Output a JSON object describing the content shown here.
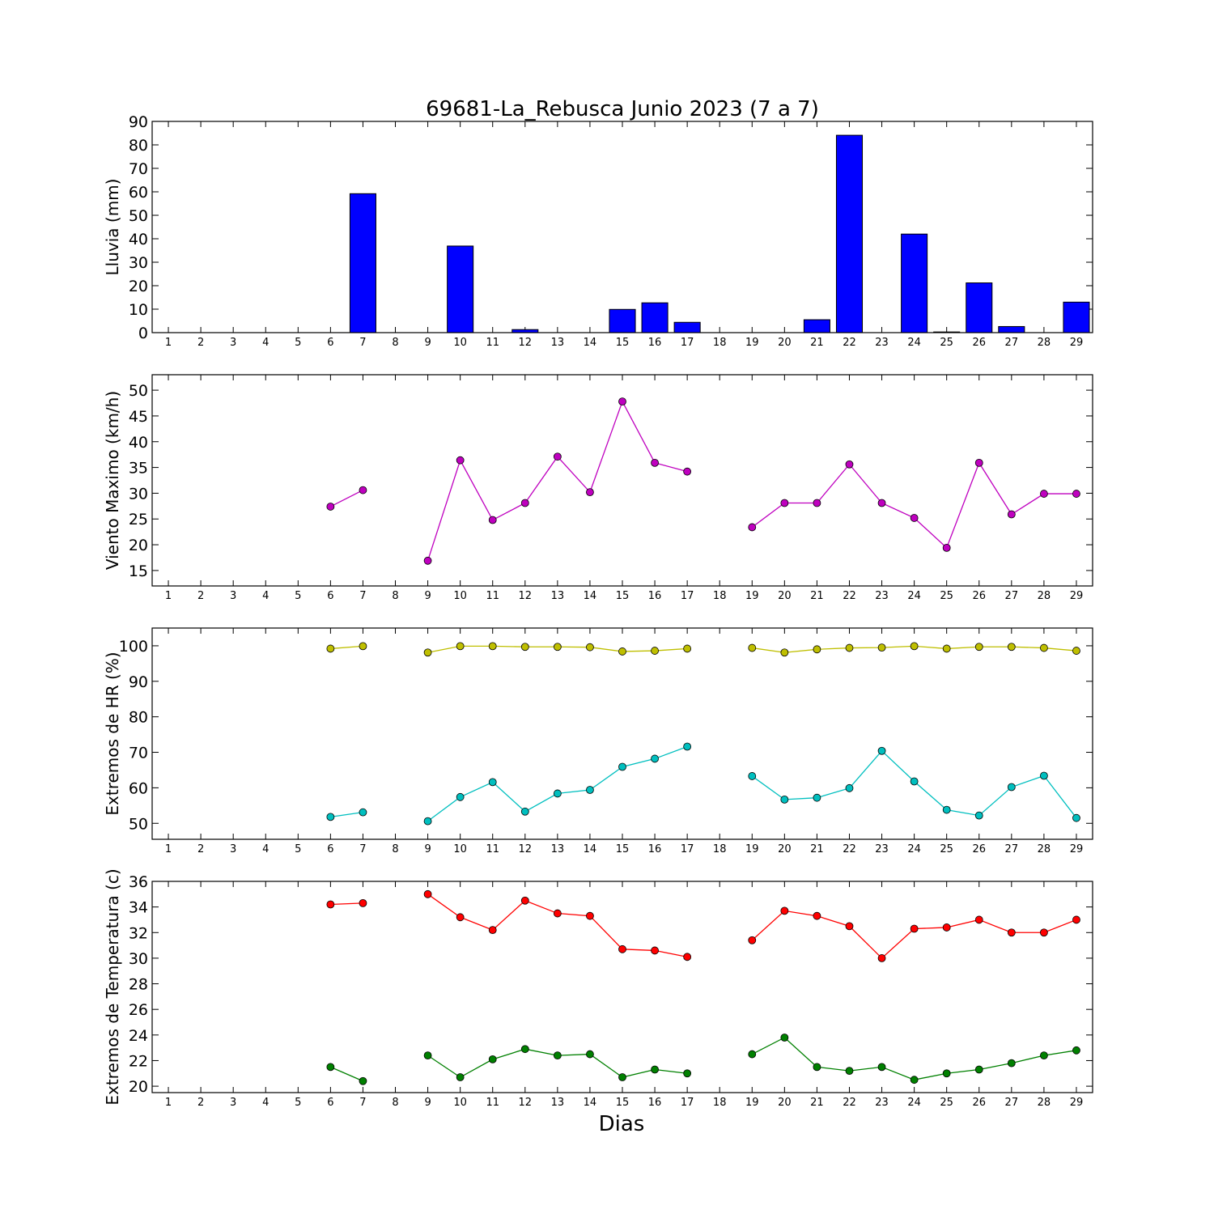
{
  "chart_data": {
    "title": "69681-La_Rebusca Junio 2023  (7 a 7)",
    "xlabel": "Dias",
    "days": [
      1,
      2,
      3,
      4,
      5,
      6,
      7,
      8,
      9,
      10,
      11,
      12,
      13,
      14,
      15,
      16,
      17,
      18,
      19,
      20,
      21,
      22,
      23,
      24,
      25,
      26,
      27,
      28,
      29
    ],
    "panels": [
      {
        "type": "bar",
        "ylabel": "Lluvia (mm)",
        "ylim": [
          0,
          90
        ],
        "yticks": [
          0,
          10,
          20,
          30,
          40,
          50,
          60,
          70,
          80,
          90
        ],
        "series": [
          {
            "color": "#0000ff",
            "values": [
              0,
              0,
              0,
              0,
              0,
              0,
              59.2,
              0,
              0,
              36.9,
              0,
              1.3,
              0,
              0,
              9.9,
              12.7,
              4.4,
              0,
              0,
              0,
              5.5,
              84.1,
              0,
              42,
              0.3,
              21.2,
              2.6,
              0,
              13
            ]
          }
        ]
      },
      {
        "type": "line",
        "ylabel": "Viento Maximo (km/h)",
        "ylim": [
          12,
          53
        ],
        "yticks": [
          15,
          20,
          25,
          30,
          35,
          40,
          45,
          50
        ],
        "series": [
          {
            "color": "#bf00bf",
            "values": [
              null,
              null,
              null,
              null,
              null,
              27.4,
              30.6,
              null,
              16.9,
              36.4,
              24.8,
              28.1,
              37.1,
              30.2,
              47.8,
              35.9,
              34.2,
              null,
              23.4,
              28.1,
              28.1,
              35.6,
              28.1,
              25.2,
              19.4,
              35.9,
              25.9,
              29.9,
              29.9
            ]
          }
        ]
      },
      {
        "type": "line",
        "ylabel": "Extremos de HR (%)",
        "ylim": [
          45.5,
          105
        ],
        "yticks": [
          50,
          60,
          70,
          80,
          90,
          100
        ],
        "series": [
          {
            "color": "#bfbf00",
            "values": [
              null,
              null,
              null,
              null,
              null,
              99.2,
              99.9,
              null,
              98.1,
              99.9,
              99.9,
              99.7,
              99.7,
              99.6,
              98.4,
              98.6,
              99.2,
              null,
              99.4,
              98.1,
              99,
              99.4,
              99.5,
              99.9,
              99.2,
              99.7,
              99.7,
              99.4,
              98.6
            ]
          },
          {
            "color": "#00bfbf",
            "values": [
              null,
              null,
              null,
              null,
              null,
              51.8,
              53.1,
              null,
              50.6,
              57.4,
              61.6,
              53.3,
              58.4,
              59.4,
              65.9,
              68.2,
              71.6,
              null,
              63.3,
              56.7,
              57.2,
              59.9,
              70.4,
              61.8,
              53.8,
              52.2,
              60.2,
              63.4,
              51.5
            ]
          }
        ]
      },
      {
        "type": "line",
        "ylabel": "Extremos de Temperatura (c)",
        "ylim": [
          19.5,
          36
        ],
        "yticks": [
          20,
          22,
          24,
          26,
          28,
          30,
          32,
          34,
          36
        ],
        "series": [
          {
            "color": "#ff0000",
            "values": [
              null,
              null,
              null,
              null,
              null,
              34.2,
              34.3,
              null,
              35,
              33.2,
              32.2,
              34.5,
              33.5,
              33.3,
              30.7,
              30.6,
              30.1,
              null,
              31.4,
              33.7,
              33.3,
              32.5,
              30,
              32.3,
              32.4,
              33,
              32,
              32,
              33
            ]
          },
          {
            "color": "#008000",
            "values": [
              null,
              null,
              null,
              null,
              null,
              21.5,
              20.4,
              null,
              22.4,
              20.7,
              22.1,
              22.9,
              22.4,
              22.5,
              20.7,
              21.3,
              21,
              null,
              22.5,
              23.8,
              21.5,
              21.2,
              21.5,
              20.5,
              21,
              21.3,
              21.8,
              22.4,
              22.8
            ]
          }
        ]
      }
    ]
  }
}
